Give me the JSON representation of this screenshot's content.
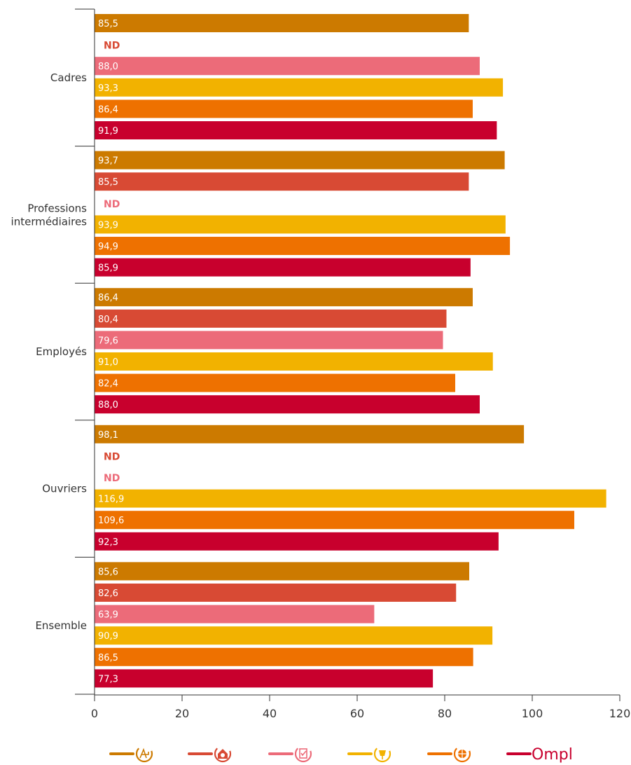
{
  "chart_data": {
    "type": "bar",
    "orientation": "horizontal",
    "categories": [
      "Cadres",
      "Professions intermédiaires",
      "Employés",
      "Ouvriers",
      "Ensemble"
    ],
    "category_lines": [
      [
        "Cadres"
      ],
      [
        "Professions",
        "intermédiaires"
      ],
      [
        "Employés"
      ],
      [
        "Ouvriers"
      ],
      [
        "Ensemble"
      ]
    ],
    "series": [
      {
        "color": "#cc7a00",
        "icon": "architecture-icon",
        "values": [
          85.5,
          93.7,
          86.4,
          98.1,
          85.6
        ],
        "labels": [
          "85,5",
          "93,7",
          "86,4",
          "98,1",
          "85,6"
        ]
      },
      {
        "color": "#d84a34",
        "icon": "house-camera-icon",
        "values": [
          null,
          85.5,
          80.4,
          null,
          82.6
        ],
        "labels": [
          "ND",
          "85,5",
          "80,4",
          "ND",
          "82,6"
        ]
      },
      {
        "color": "#ec6b79",
        "icon": "checklist-icon",
        "values": [
          88.0,
          null,
          79.6,
          null,
          63.9
        ],
        "labels": [
          "88,0",
          "ND",
          "79,6",
          "ND",
          "63,9"
        ]
      },
      {
        "color": "#f2b200",
        "icon": "lamp-icon",
        "values": [
          93.3,
          93.9,
          91.0,
          116.9,
          90.9
        ],
        "labels": [
          "93,3",
          "93,9",
          "91,0",
          "116,9",
          "90,9"
        ]
      },
      {
        "color": "#ee7100",
        "icon": "globe-icon",
        "values": [
          86.4,
          94.9,
          82.4,
          109.6,
          86.5
        ],
        "labels": [
          "86,4",
          "94,9",
          "82,4",
          "109,6",
          "86,5"
        ]
      },
      {
        "color": "#c8002d",
        "icon": "ompl-logo",
        "values": [
          91.9,
          85.9,
          88.0,
          92.3,
          77.3
        ],
        "labels": [
          "91,9",
          "85,9",
          "88,0",
          "92,3",
          "77,3"
        ]
      }
    ],
    "na_label": "ND",
    "xlim": [
      0,
      120
    ],
    "xticks": [
      0,
      20,
      40,
      60,
      80,
      100,
      120
    ],
    "xtick_labels": [
      "0",
      "20",
      "40",
      "60",
      "80",
      "100",
      "120"
    ],
    "grid": false,
    "legend": "bottom",
    "legend_brand_text": "Ompl"
  }
}
